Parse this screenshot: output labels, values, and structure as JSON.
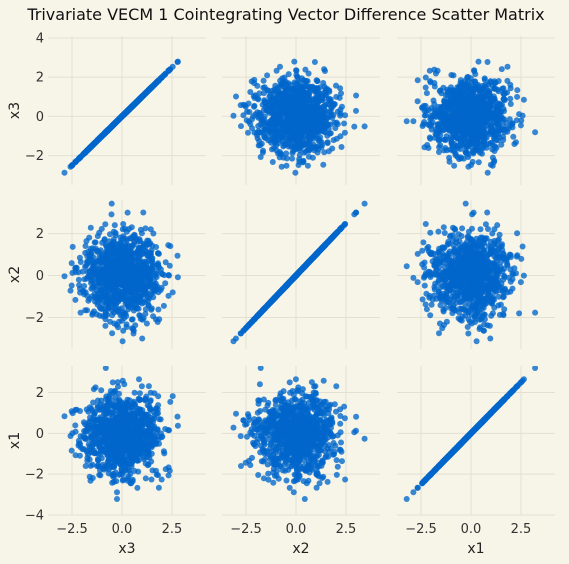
{
  "chart_data": {
    "type": "scatter",
    "title": "Trivariate VECM 1 Cointegrating Vector Difference Scatter Matrix",
    "variables": [
      "x3",
      "x2",
      "x1"
    ],
    "panels": [
      {
        "row": "x3",
        "col": "x3",
        "kind": "identity",
        "xlim": [
          -3.7,
          4.2
        ],
        "ylim": [
          -3.5,
          4.1
        ]
      },
      {
        "row": "x3",
        "col": "x2",
        "kind": "cloud",
        "xlim": [
          -3.7,
          4.2
        ],
        "ylim": [
          -3.5,
          4.1
        ]
      },
      {
        "row": "x3",
        "col": "x1",
        "kind": "cloud",
        "xlim": [
          -3.7,
          4.2
        ],
        "ylim": [
          -3.5,
          4.1
        ]
      },
      {
        "row": "x2",
        "col": "x3",
        "kind": "cloud",
        "xlim": [
          -3.7,
          4.2
        ],
        "ylim": [
          -3.5,
          3.6
        ]
      },
      {
        "row": "x2",
        "col": "x2",
        "kind": "identity",
        "xlim": [
          -3.7,
          4.2
        ],
        "ylim": [
          -3.5,
          3.6
        ]
      },
      {
        "row": "x2",
        "col": "x1",
        "kind": "cloud",
        "xlim": [
          -3.7,
          4.2
        ],
        "ylim": [
          -3.5,
          3.6
        ]
      },
      {
        "row": "x1",
        "col": "x3",
        "kind": "cloud",
        "xlim": [
          -3.7,
          4.2
        ],
        "ylim": [
          -4.0,
          3.3
        ]
      },
      {
        "row": "x1",
        "col": "x2",
        "kind": "cloud",
        "xlim": [
          -3.7,
          4.2
        ],
        "ylim": [
          -4.0,
          3.3
        ]
      },
      {
        "row": "x1",
        "col": "x1",
        "kind": "identity",
        "xlim": [
          -3.7,
          4.2
        ],
        "ylim": [
          -4.0,
          3.3
        ]
      }
    ],
    "x_ticks": [
      -2.5,
      0.0,
      2.5
    ],
    "x_tick_labels": [
      "−2.5",
      "0.0",
      "2.5"
    ],
    "y_ticks": {
      "x3": [
        4,
        2,
        0,
        -2
      ],
      "x2": [
        2,
        0,
        -2
      ],
      "x1": [
        2,
        0,
        -2,
        -4
      ]
    },
    "y_tick_labels": {
      "x3": [
        "4",
        "2",
        "0",
        "−2"
      ],
      "x2": [
        "2",
        "0",
        "−2"
      ],
      "x1": [
        "2",
        "0",
        "−2",
        "−4"
      ]
    },
    "xlabels": [
      "x3",
      "x2",
      "x1"
    ],
    "ylabels": [
      "x3",
      "x2",
      "x1"
    ],
    "n_points": 1000,
    "distribution": "standard normal, independent between variables",
    "grid": true,
    "point_color": "#0066cc",
    "background_color": "#f7f4e8",
    "grid_color": "#e3e0d3"
  }
}
